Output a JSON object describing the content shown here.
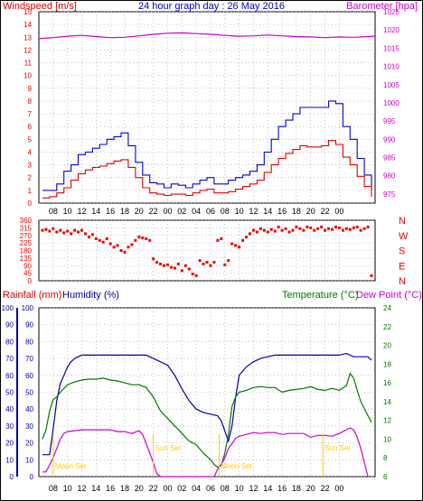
{
  "header": {
    "title": "24 hour graph day : 26 May 2016",
    "left_label": "Windspeed [m/s]",
    "right_label": "Barometer [hpa]"
  },
  "lower_header": {
    "rain": "Rainfall (mm)",
    "humidity": "Humidity (%)",
    "temperature": "Temperature (°C)",
    "dewpoint": "Dew Point (°C)"
  },
  "colors": {
    "wind": "#dd0000",
    "gust": "#0000dd",
    "baro": "#cc00cc",
    "direction": "#ee0000",
    "humidity": "#0000aa",
    "temperature": "#007700",
    "dewpoint": "#cc00cc",
    "sun": "#ffcc00",
    "grid": "#9a9a9a"
  },
  "time_labels": [
    "08",
    "10",
    "12",
    "14",
    "16",
    "18",
    "20",
    "22",
    "00",
    "02",
    "04",
    "06",
    "08",
    "10",
    "12",
    "14",
    "16",
    "18",
    "20",
    "22",
    "00"
  ],
  "compass_labels": [
    "N",
    "W",
    "S",
    "E",
    "N"
  ],
  "events": [
    {
      "label": "Moon Set",
      "x": 8.0
    },
    {
      "label": "Sun Set",
      "x": 22.0
    },
    {
      "label": "Moon Set",
      "x": 31.2
    },
    {
      "label": "Sun Set",
      "x": 45.7
    }
  ],
  "chart_data": [
    {
      "type": "line",
      "name": "wind-barometer",
      "x_domain": [
        6,
        53
      ],
      "ylim_left": [
        0,
        15
      ],
      "ylim_right": [
        972.5,
        1025
      ],
      "left_ticks": [
        0,
        1,
        2,
        3,
        4,
        5,
        6,
        7,
        8,
        9,
        10,
        11,
        12,
        13,
        14,
        15
      ],
      "right_ticks": [
        975,
        980,
        985,
        990,
        995,
        1000,
        1005,
        1010,
        1015,
        1020,
        1025
      ],
      "series": [
        {
          "key": "gust",
          "axis": "left",
          "x": [
            6.5,
            7.5,
            8.5,
            9.5,
            10.5,
            11.5,
            12.5,
            13.5,
            14.5,
            15.5,
            16.5,
            17.5,
            18.5,
            19.5,
            20.5,
            21.5,
            22.5,
            23.5,
            24.5,
            25.5,
            26.5,
            27.5,
            28.5,
            29.5,
            30.5,
            31.5,
            32.5,
            33.5,
            34.5,
            35.5,
            36.5,
            37.5,
            38.5,
            39.5,
            40.5,
            41.5,
            42.5,
            43.5,
            44.5,
            45.5,
            46.5,
            47.5,
            48.5,
            49.5,
            50.5,
            51.5,
            52.5
          ],
          "y": [
            1,
            1,
            1.5,
            2.5,
            3,
            3.8,
            4,
            4.3,
            4.6,
            5,
            5.2,
            5.5,
            4.5,
            3.2,
            2.2,
            1.6,
            1.5,
            1.2,
            1.5,
            1.4,
            1.2,
            1.5,
            1.8,
            2,
            1.5,
            1.5,
            1.8,
            2,
            2.2,
            2.5,
            3,
            4,
            5,
            6,
            6.5,
            7,
            7.5,
            7.5,
            7.5,
            7.5,
            8,
            7.8,
            6,
            5,
            3.5,
            2.2,
            1
          ]
        },
        {
          "key": "wind",
          "axis": "left",
          "x": [
            6.5,
            7.5,
            8.5,
            9.5,
            10.5,
            11.5,
            12.5,
            13.5,
            14.5,
            15.5,
            16.5,
            17.5,
            18.5,
            19.5,
            20.5,
            21.5,
            22.5,
            23.5,
            24.5,
            25.5,
            26.5,
            27.5,
            28.5,
            29.5,
            30.5,
            31.5,
            32.5,
            33.5,
            34.5,
            35.5,
            36.5,
            37.5,
            38.5,
            39.5,
            40.5,
            41.5,
            42.5,
            43.5,
            44.5,
            45.5,
            46.5,
            47.5,
            48.5,
            49.5,
            50.5,
            51.5,
            52.5
          ],
          "y": [
            0.4,
            0.5,
            0.8,
            1.2,
            1.8,
            2.3,
            2.6,
            2.8,
            2.9,
            3.1,
            3.3,
            3.4,
            2.8,
            2,
            1.2,
            0.8,
            0.7,
            0.6,
            0.7,
            0.7,
            0.6,
            0.8,
            1,
            1.1,
            0.8,
            0.8,
            0.9,
            1.1,
            1.3,
            1.5,
            1.8,
            2.4,
            3,
            3.5,
            3.9,
            4.2,
            4.5,
            4.4,
            4.4,
            4.5,
            4.9,
            4.6,
            3.6,
            3,
            2.1,
            1.3,
            0.5
          ]
        },
        {
          "key": "baro",
          "axis": "right",
          "x": [
            6,
            8,
            10,
            12,
            14,
            16,
            18,
            20,
            22,
            24,
            26,
            28,
            30,
            32,
            34,
            36,
            38,
            40,
            42,
            44,
            46,
            48,
            50,
            52,
            53
          ],
          "y": [
            1017.6,
            1017.9,
            1018.3,
            1018.5,
            1018.2,
            1017.9,
            1018.0,
            1018.4,
            1018.8,
            1019.1,
            1019.2,
            1019.0,
            1018.8,
            1018.5,
            1018.3,
            1018.4,
            1018.6,
            1018.4,
            1018.2,
            1018.1,
            1017.9,
            1018.1,
            1018.0,
            1018.2,
            1018.3
          ]
        }
      ]
    },
    {
      "type": "scatter",
      "name": "wind-direction",
      "x_domain": [
        6,
        53
      ],
      "ylim": [
        0,
        360
      ],
      "y_ticks": [
        0,
        45,
        90,
        135,
        180,
        225,
        270,
        315,
        360
      ],
      "series": [
        {
          "key": "direction",
          "x": [
            6.5,
            7,
            7.5,
            8,
            8.5,
            9,
            9.5,
            10,
            10.5,
            11,
            11.5,
            12,
            12.5,
            13,
            13.5,
            14,
            14.5,
            15,
            15.5,
            16,
            16.5,
            17,
            17.5,
            18,
            18.5,
            19,
            19.5,
            20,
            20.5,
            21,
            21.5,
            22,
            22.5,
            23,
            23.5,
            24,
            24.5,
            25,
            25.5,
            26,
            26.5,
            27,
            27.5,
            28,
            28.5,
            29,
            29.5,
            30,
            30.5,
            31,
            31.5,
            32,
            32.5,
            33,
            33.5,
            34,
            34.5,
            35,
            35.5,
            36,
            36.5,
            37,
            37.5,
            38,
            38.5,
            39,
            39.5,
            40,
            40.5,
            41,
            41.5,
            42,
            42.5,
            43,
            43.5,
            44,
            44.5,
            45,
            45.5,
            46,
            46.5,
            47,
            47.5,
            48,
            48.5,
            49,
            49.5,
            50,
            50.5,
            51,
            51.5,
            52,
            52.5
          ],
          "y": [
            300,
            305,
            295,
            310,
            290,
            300,
            285,
            295,
            280,
            300,
            290,
            300,
            280,
            260,
            275,
            250,
            240,
            230,
            250,
            220,
            200,
            210,
            180,
            170,
            200,
            215,
            240,
            260,
            255,
            250,
            240,
            130,
            110,
            100,
            90,
            95,
            80,
            75,
            100,
            60,
            90,
            70,
            40,
            30,
            120,
            100,
            110,
            90,
            110,
            240,
            250,
            95,
            120,
            220,
            210,
            200,
            240,
            260,
            280,
            300,
            290,
            310,
            300,
            290,
            305,
            295,
            320,
            300,
            310,
            290,
            300,
            320,
            310,
            300,
            320,
            315,
            300,
            310,
            320,
            300,
            310,
            305,
            320,
            315,
            300,
            310,
            305,
            315,
            320,
            300,
            310,
            320,
            30
          ]
        }
      ]
    },
    {
      "type": "line",
      "name": "humidity-temperature",
      "x_domain": [
        6,
        53
      ],
      "ylim_left": [
        0,
        100
      ],
      "ylim_right": [
        6,
        24
      ],
      "left_ticks": [
        0,
        10,
        20,
        30,
        40,
        50,
        60,
        70,
        80,
        90,
        100
      ],
      "right_ticks": [
        6,
        8,
        10,
        12,
        14,
        16,
        18,
        20,
        22,
        24
      ],
      "series": [
        {
          "key": "humidity",
          "axis": "left",
          "x": [
            6.5,
            7,
            7.5,
            8,
            8.5,
            9,
            9.5,
            10,
            10.5,
            11,
            11.5,
            12,
            13,
            14,
            15,
            16,
            17,
            18,
            19,
            20,
            21,
            22,
            23,
            24,
            25,
            26,
            27,
            28,
            29,
            30,
            31,
            31.5,
            32,
            32.5,
            33,
            33.5,
            34,
            35,
            36,
            37,
            38,
            39,
            40,
            41,
            42,
            43,
            44,
            45,
            46,
            47,
            48,
            49,
            50,
            51,
            52,
            52.5
          ],
          "y": [
            13,
            13,
            13,
            28,
            45,
            55,
            60,
            65,
            68,
            70,
            71,
            72,
            72,
            72,
            72,
            72,
            72,
            72,
            72,
            72,
            72,
            70,
            68,
            66,
            60,
            52,
            45,
            40,
            38,
            37,
            36,
            33,
            27,
            21,
            30,
            47,
            60,
            65,
            68,
            70,
            71,
            72,
            72,
            72,
            72,
            72,
            72,
            72,
            72,
            72,
            72,
            73,
            71,
            71,
            71,
            69
          ]
        },
        {
          "key": "temperature",
          "axis": "right",
          "x": [
            6.5,
            7,
            7.5,
            8,
            8.5,
            9,
            10,
            11,
            12,
            13,
            14,
            15,
            16,
            17,
            18,
            19,
            20,
            21,
            22,
            23,
            24,
            25,
            26,
            27,
            28,
            29,
            30,
            30.5,
            31,
            31.5,
            32,
            32.5,
            33,
            33.5,
            34,
            35,
            36,
            37,
            38,
            39,
            40,
            41,
            42,
            43,
            44,
            45,
            46,
            47,
            48,
            49,
            49.5,
            50,
            50.5,
            51,
            52,
            52.5
          ],
          "y": [
            10,
            11,
            13,
            14.2,
            14.5,
            15,
            15.8,
            16.1,
            16.3,
            16.4,
            16.4,
            16.5,
            16.3,
            16.2,
            16.0,
            15.8,
            15.8,
            15.5,
            14.5,
            13,
            12.2,
            11.4,
            10.6,
            9.8,
            9.4,
            8.5,
            7.8,
            7.3,
            7.0,
            7.2,
            8.5,
            10.5,
            13.5,
            14.5,
            15,
            15.2,
            15.5,
            15.6,
            15.5,
            15.5,
            15.0,
            15.2,
            15.3,
            15.4,
            15.6,
            15.3,
            15.2,
            15.4,
            15.2,
            15.7,
            17.0,
            16.5,
            15.2,
            14.0,
            12.5,
            11.8
          ]
        },
        {
          "key": "dewpoint",
          "axis": "right",
          "x": [
            6.5,
            7,
            8,
            8.5,
            9,
            9.5,
            10,
            11,
            12,
            13,
            14,
            15,
            16,
            17,
            18,
            19,
            20,
            20.5,
            21,
            21.5,
            22,
            22.5,
            23,
            29,
            30,
            30.5,
            31,
            31.5,
            32,
            32.5,
            33,
            33.5,
            34,
            35,
            36,
            37,
            38,
            39,
            40,
            41,
            42,
            43,
            44,
            45,
            46,
            47,
            48,
            49,
            49.5,
            50,
            50.5,
            51,
            51.5,
            52
          ],
          "y": [
            6.5,
            6.5,
            8,
            9,
            10,
            10.6,
            10.8,
            10.9,
            11,
            11.0,
            11.0,
            11.0,
            11.0,
            10.8,
            10.8,
            10.6,
            10.9,
            10.5,
            9.5,
            8.5,
            7.5,
            6.3,
            6.0,
            6.0,
            6.0,
            6.0,
            6.8,
            7.3,
            8.0,
            9.0,
            9.5,
            10.1,
            10.3,
            10.5,
            10.7,
            10.6,
            10.7,
            10.7,
            10.5,
            10.6,
            10.6,
            10.6,
            10.2,
            10.4,
            10.4,
            10.3,
            10.6,
            11.0,
            11.2,
            11.0,
            10.2,
            9.0,
            7.5,
            6.0
          ]
        }
      ]
    }
  ]
}
